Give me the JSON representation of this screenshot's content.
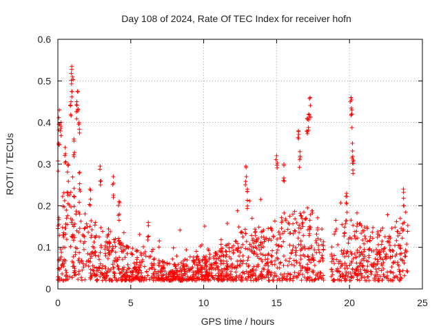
{
  "chart_data": {
    "type": "scatter",
    "title": "Day 108 of 2024, Rate Of TEC Index for receiver hofn",
    "xlabel": "GPS time / hours",
    "ylabel": "ROTI / TECUs",
    "xlim": [
      0,
      25
    ],
    "ylim": [
      0,
      0.6
    ],
    "xticks": [
      0,
      5,
      10,
      15,
      20,
      25
    ],
    "yticks": [
      0,
      0.1,
      0.2,
      0.3,
      0.4,
      0.5,
      0.6
    ],
    "xtick_labels": [
      "0",
      "5",
      "10",
      "15",
      "20",
      "25"
    ],
    "ytick_labels": [
      "0",
      "0.1",
      "0.2",
      "0.3",
      "0.4",
      "0.5",
      "0.6"
    ],
    "grid": true,
    "marker": "+",
    "series": [
      {
        "name": "ROTI",
        "color": "#ff0000",
        "envelope": {
          "description": "Dense cloud of plus markers; per-hour typical band and notable spikes (values in TECUs)",
          "hours": [
            0,
            1,
            2,
            3,
            4,
            5,
            6,
            7,
            8,
            9,
            10,
            11,
            12,
            13,
            14,
            15,
            16,
            17,
            18,
            18.5,
            19,
            20,
            21,
            22,
            23,
            24
          ],
          "band_low": [
            0.02,
            0.02,
            0.02,
            0.02,
            0.02,
            0.02,
            0.02,
            0.02,
            0.02,
            0.02,
            0.02,
            0.02,
            0.02,
            0.02,
            0.02,
            0.02,
            0.02,
            0.02,
            0.02,
            0.02,
            0.02,
            0.02,
            0.02,
            0.02,
            0.02,
            0.02
          ],
          "band_high": [
            0.22,
            0.25,
            0.18,
            0.16,
            0.13,
            0.1,
            0.09,
            0.07,
            0.06,
            0.08,
            0.08,
            0.09,
            0.12,
            0.15,
            0.14,
            0.17,
            0.19,
            0.2,
            0.18,
            0.05,
            0.15,
            0.17,
            0.16,
            0.15,
            0.16,
            0.18
          ]
        },
        "spikes": [
          {
            "x": 0.05,
            "y": 0.35
          },
          {
            "x": 0.1,
            "y": 0.43
          },
          {
            "x": 0.2,
            "y": 0.4
          },
          {
            "x": 0.5,
            "y": 0.34
          },
          {
            "x": 0.7,
            "y": 0.3
          },
          {
            "x": 0.9,
            "y": 0.45
          },
          {
            "x": 0.95,
            "y": 0.535
          },
          {
            "x": 1.0,
            "y": 0.51
          },
          {
            "x": 1.1,
            "y": 0.36
          },
          {
            "x": 1.3,
            "y": 0.45
          },
          {
            "x": 1.35,
            "y": 0.475
          },
          {
            "x": 1.45,
            "y": 0.4
          },
          {
            "x": 1.5,
            "y": 0.28
          },
          {
            "x": 2.2,
            "y": 0.24
          },
          {
            "x": 2.9,
            "y": 0.295
          },
          {
            "x": 3.8,
            "y": 0.27
          },
          {
            "x": 4.2,
            "y": 0.21
          },
          {
            "x": 6.2,
            "y": 0.16
          },
          {
            "x": 12.9,
            "y": 0.295
          },
          {
            "x": 13.0,
            "y": 0.24
          },
          {
            "x": 15.0,
            "y": 0.32
          },
          {
            "x": 15.5,
            "y": 0.3
          },
          {
            "x": 16.5,
            "y": 0.38
          },
          {
            "x": 16.6,
            "y": 0.33
          },
          {
            "x": 17.1,
            "y": 0.41
          },
          {
            "x": 17.2,
            "y": 0.42
          },
          {
            "x": 17.3,
            "y": 0.46
          },
          {
            "x": 20.1,
            "y": 0.46
          },
          {
            "x": 20.15,
            "y": 0.43
          },
          {
            "x": 20.2,
            "y": 0.35
          },
          {
            "x": 20.25,
            "y": 0.31
          },
          {
            "x": 19.8,
            "y": 0.23
          },
          {
            "x": 23.7,
            "y": 0.24
          }
        ]
      }
    ]
  }
}
